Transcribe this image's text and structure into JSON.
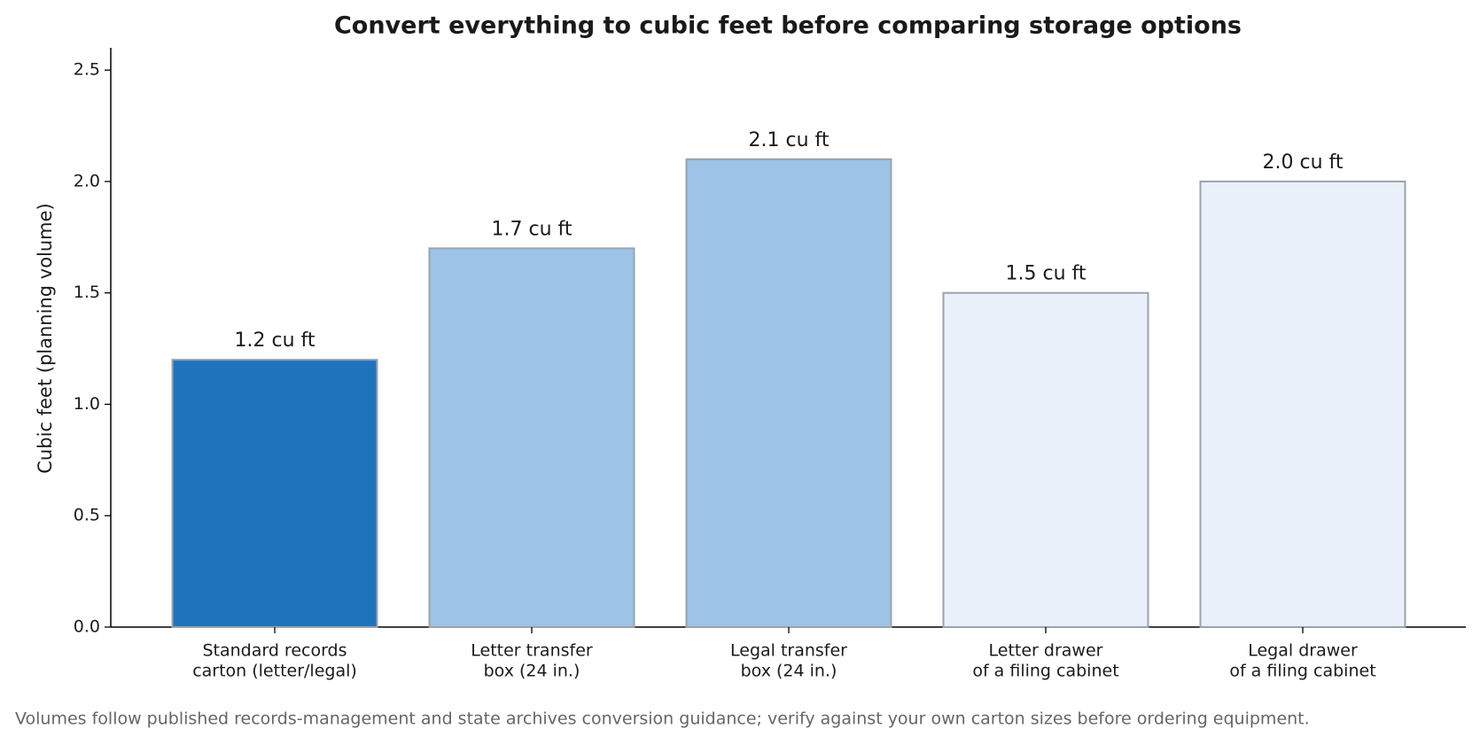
{
  "chart_data": {
    "type": "bar",
    "title": "Convert everything to cubic feet before comparing storage options",
    "y_label": "Cubic feet (planning volume)",
    "categories": [
      [
        "Standard records",
        "carton (letter/legal)"
      ],
      [
        "Letter transfer",
        "box (24 in.)"
      ],
      [
        "Legal transfer",
        "box (24 in.)"
      ],
      [
        "Letter drawer",
        "of a filing cabinet"
      ],
      [
        "Legal drawer",
        "of a filing cabinet"
      ]
    ],
    "values": [
      1.2,
      1.7,
      2.1,
      1.5,
      2.0
    ],
    "value_labels": [
      "1.2 cu ft",
      "1.7 cu ft",
      "2.1 cu ft",
      "1.5 cu ft",
      "2.0 cu ft"
    ],
    "colors": [
      "#1f73bd",
      "#9dc3e6",
      "#9dc3e6",
      "#eaf1fa",
      "#eaf1fa"
    ],
    "ylim": [
      0,
      2.6
    ],
    "yticks": [
      {
        "value": 0,
        "label": "0.0"
      },
      0.5,
      {
        "value": 1,
        "label": "1.0"
      },
      1.5,
      {
        "value": 2,
        "label": "2.0"
      },
      2.5
    ],
    "footnote": "Volumes follow published records-management and state archives conversion guidance; verify against your own carton sizes before ordering equipment."
  }
}
